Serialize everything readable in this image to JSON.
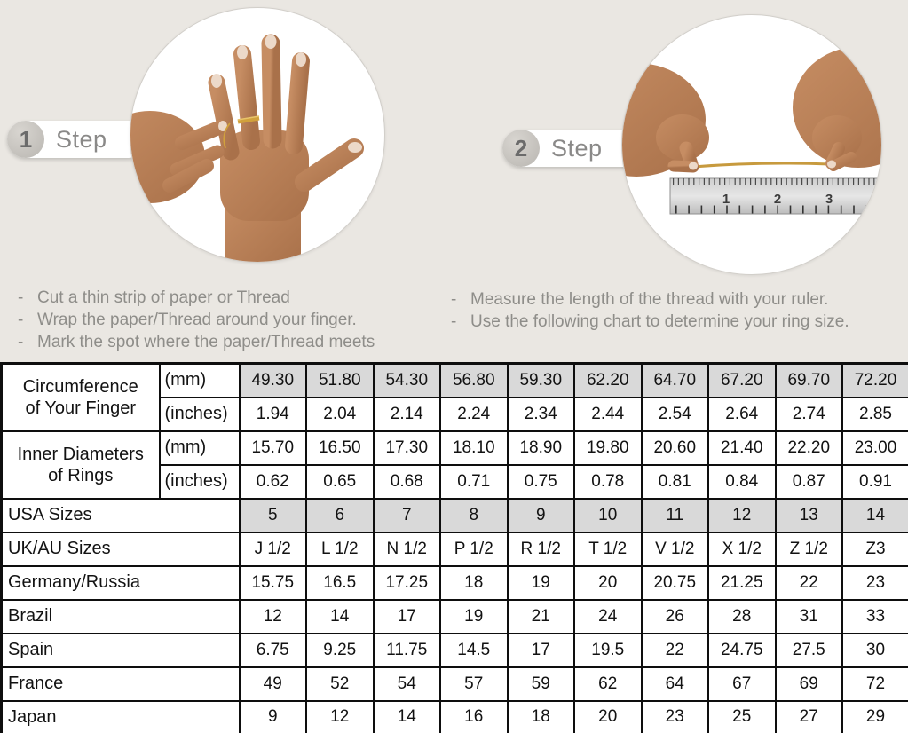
{
  "page": {
    "background": "#eae7e2",
    "shaded_cell_color": "#d9d9d9",
    "bullet": "-"
  },
  "steps": [
    {
      "number": "1",
      "label": "Step",
      "image": "hand-with-thread-wrapped-around-ring-finger",
      "instructions": [
        "Cut a thin strip of paper or Thread",
        "Wrap the paper/Thread around your finger.",
        "Mark the spot where the paper/Thread meets"
      ]
    },
    {
      "number": "2",
      "label": "Step",
      "image": "hands-measuring-thread-length-with-ruler",
      "ruler_numbers": [
        "1",
        "2",
        "3"
      ],
      "instructions": [
        "Measure the length of the thread with your ruler.",
        "Use the following chart to determine your ring size."
      ]
    }
  ],
  "table": {
    "span_labels": [
      {
        "line1": "Circumference",
        "line2": "of Your Finger"
      },
      {
        "line1": "Inner Diameters",
        "line2": "of Rings"
      }
    ],
    "rows": [
      {
        "group": 0,
        "label": "(mm)",
        "shaded": true,
        "values": [
          "49.30",
          "51.80",
          "54.30",
          "56.80",
          "59.30",
          "62.20",
          "64.70",
          "67.20",
          "69.70",
          "72.20"
        ]
      },
      {
        "group": 0,
        "label": "(inches)",
        "shaded": false,
        "values": [
          "1.94",
          "2.04",
          "2.14",
          "2.24",
          "2.34",
          "2.44",
          "2.54",
          "2.64",
          "2.74",
          "2.85"
        ]
      },
      {
        "group": 1,
        "label": "(mm)",
        "shaded": false,
        "values": [
          "15.70",
          "16.50",
          "17.30",
          "18.10",
          "18.90",
          "19.80",
          "20.60",
          "21.40",
          "22.20",
          "23.00"
        ]
      },
      {
        "group": 1,
        "label": "(inches)",
        "shaded": false,
        "values": [
          "0.62",
          "0.65",
          "0.68",
          "0.71",
          "0.75",
          "0.78",
          "0.81",
          "0.84",
          "0.87",
          "0.91"
        ]
      },
      {
        "full": true,
        "label": "USA Sizes",
        "shaded": true,
        "values": [
          "5",
          "6",
          "7",
          "8",
          "9",
          "10",
          "11",
          "12",
          "13",
          "14"
        ]
      },
      {
        "full": true,
        "label": "UK/AU Sizes",
        "shaded": false,
        "values": [
          "J 1/2",
          "L 1/2",
          "N 1/2",
          "P 1/2",
          "R 1/2",
          "T 1/2",
          "V 1/2",
          "X 1/2",
          "Z 1/2",
          "Z3"
        ]
      },
      {
        "full": true,
        "label": "Germany/Russia",
        "shaded": false,
        "values": [
          "15.75",
          "16.5",
          "17.25",
          "18",
          "19",
          "20",
          "20.75",
          "21.25",
          "22",
          "23"
        ]
      },
      {
        "full": true,
        "label": "Brazil",
        "shaded": false,
        "values": [
          "12",
          "14",
          "17",
          "19",
          "21",
          "24",
          "26",
          "28",
          "31",
          "33"
        ]
      },
      {
        "full": true,
        "label": "Spain",
        "shaded": false,
        "values": [
          "6.75",
          "9.25",
          "11.75",
          "14.5",
          "17",
          "19.5",
          "22",
          "24.75",
          "27.5",
          "30"
        ]
      },
      {
        "full": true,
        "label": "France",
        "shaded": false,
        "values": [
          "49",
          "52",
          "54",
          "57",
          "59",
          "62",
          "64",
          "67",
          "69",
          "72"
        ]
      },
      {
        "full": true,
        "label": "Japan",
        "shaded": false,
        "values": [
          "9",
          "12",
          "14",
          "16",
          "18",
          "20",
          "23",
          "25",
          "27",
          "29"
        ]
      }
    ]
  }
}
